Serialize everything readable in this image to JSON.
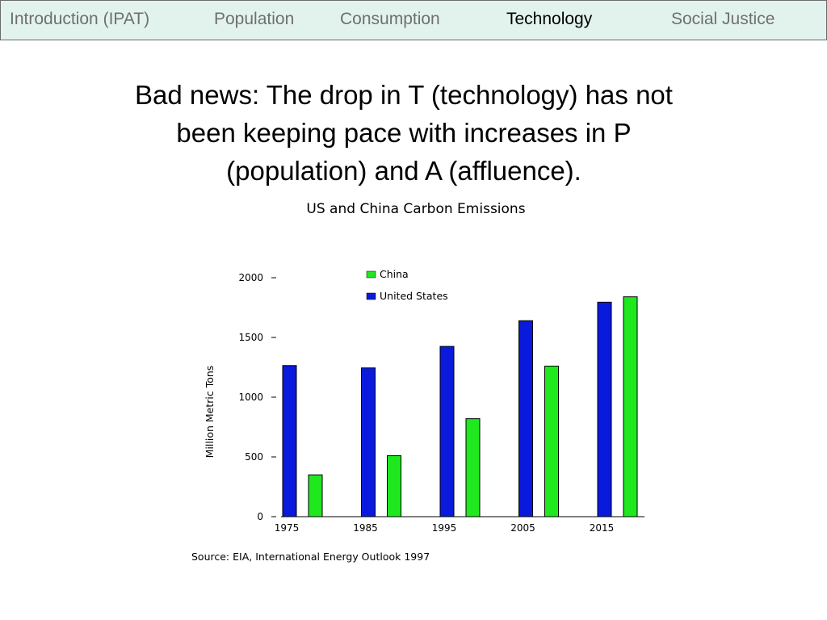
{
  "nav": {
    "items": [
      {
        "label": "Introduction (IPAT)",
        "active": false
      },
      {
        "label": "Population",
        "active": false
      },
      {
        "label": "Consumption",
        "active": false
      },
      {
        "label": "Technology",
        "active": true
      },
      {
        "label": "Social Justice",
        "active": false
      }
    ]
  },
  "slide": {
    "heading_lines": [
      "Bad news: The drop in T (technology) has not",
      "been keeping pace with increases in P",
      "(population) and A (affluence)."
    ],
    "source": "Source:  EIA, International Energy Outlook 1997"
  },
  "chart_data": {
    "type": "bar",
    "title": "US and China Carbon Emissions",
    "xlabel": "",
    "ylabel": "Million Metric Tons",
    "categories": [
      "1975",
      "1985",
      "1995",
      "2005",
      "2015"
    ],
    "ylim": [
      0,
      2000
    ],
    "yticks": [
      0,
      500,
      1000,
      1500,
      2000
    ],
    "grid": false,
    "legend_position": "top-center",
    "series": [
      {
        "name": "United States",
        "color": "#0a1adc",
        "values": [
          1265,
          1245,
          1425,
          1640,
          1795
        ]
      },
      {
        "name": "China",
        "color": "#1fe81f",
        "values": [
          350,
          510,
          820,
          1260,
          1840
        ]
      }
    ]
  }
}
